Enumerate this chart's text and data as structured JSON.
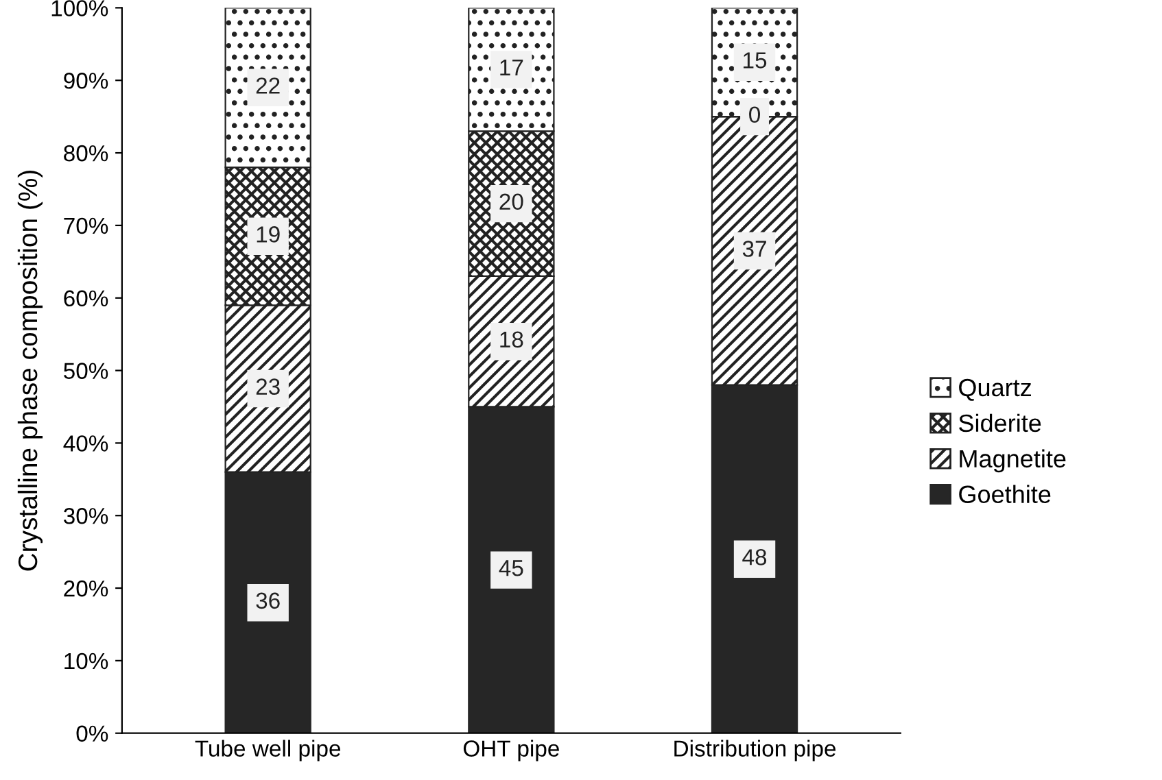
{
  "chart_data": {
    "type": "bar",
    "stacked": true,
    "ylabel": "Crystalline phase composition (%)",
    "categories": [
      "Tube well pipe",
      "OHT pipe",
      "Distribution pipe"
    ],
    "series": [
      {
        "name": "Goethite",
        "color": "#262626",
        "values": [
          36,
          45,
          48
        ]
      },
      {
        "name": "Magnetite",
        "color": "#222222",
        "values": [
          23,
          18,
          37
        ]
      },
      {
        "name": "Siderite",
        "color": "#222222",
        "values": [
          19,
          20,
          0
        ]
      },
      {
        "name": "Quartz",
        "color": "#222222",
        "values": [
          22,
          17,
          15
        ]
      }
    ],
    "ylim": [
      0,
      100
    ],
    "yticks": [
      {
        "value": 0,
        "label": "0%"
      },
      {
        "value": 10,
        "label": "10%"
      },
      {
        "value": 20,
        "label": "20%"
      },
      {
        "value": 30,
        "label": "30%"
      },
      {
        "value": 40,
        "label": "40%"
      },
      {
        "value": 50,
        "label": "50%"
      },
      {
        "value": 60,
        "label": "60%"
      },
      {
        "value": 70,
        "label": "70%"
      },
      {
        "value": 80,
        "label": "80%"
      },
      {
        "value": 90,
        "label": "90%"
      },
      {
        "value": 100,
        "label": "100%"
      }
    ],
    "data_labels": true,
    "legend": "right",
    "grid": false
  }
}
